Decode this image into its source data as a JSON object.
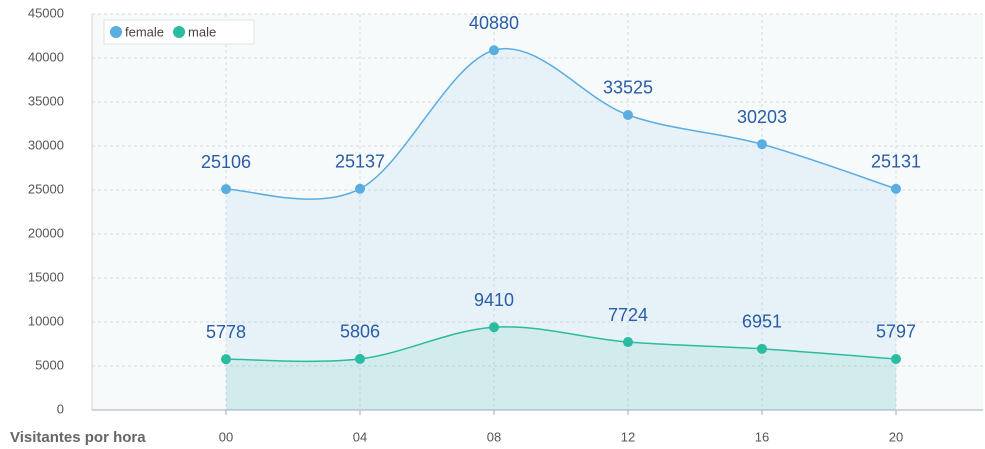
{
  "chart_data": {
    "type": "line",
    "x_label": "Visitantes por hora",
    "categories": [
      "00",
      "04",
      "08",
      "12",
      "16",
      "20"
    ],
    "series": [
      {
        "name": "female",
        "color": "#5aade0",
        "values": [
          25106,
          25137,
          40880,
          33525,
          30203,
          25131
        ]
      },
      {
        "name": "male",
        "color": "#2bbba0",
        "values": [
          5778,
          5806,
          9410,
          7724,
          6951,
          5797
        ]
      }
    ],
    "ylim": [
      0,
      45000
    ],
    "yticks": [
      0,
      5000,
      10000,
      15000,
      20000,
      25000,
      30000,
      35000,
      40000,
      45000
    ],
    "grid": true,
    "legend": "top-left",
    "data_labels": true
  }
}
